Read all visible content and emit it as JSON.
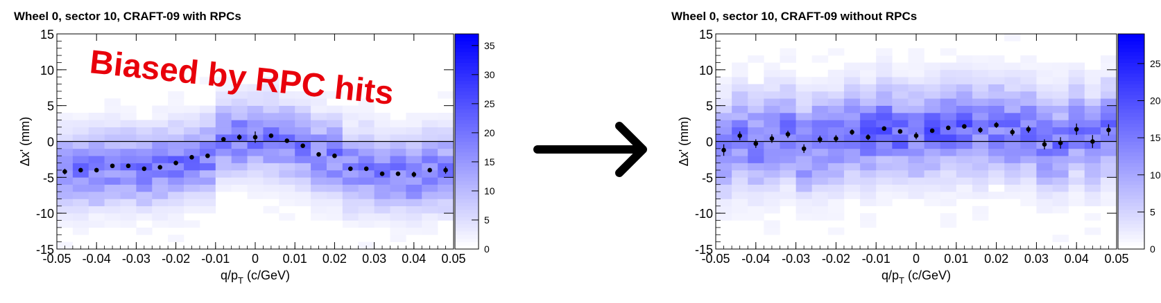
{
  "annotation": {
    "text": "Biased by RPC hits",
    "color": "#e8000b"
  },
  "arrow": {
    "icon": "right-arrow-icon",
    "color": "#000000"
  },
  "colors": {
    "low": "#ffffff",
    "high": "#0000ff",
    "marker": "#000000"
  },
  "chart_data": [
    {
      "type": "heatmap",
      "title": "Wheel 0, sector 10, CRAFT-09 with RPCs",
      "xlabel": "q/p",
      "xlabel_sub": "T",
      "xlabel_unit": " (c/GeV)",
      "ylabel": "Δx' (mm)",
      "xlim": [
        -0.05,
        0.05
      ],
      "ylim": [
        -15,
        15
      ],
      "x_ticks": [
        "-0.05",
        "-0.04",
        "-0.03",
        "-0.02",
        "-0.01",
        "0",
        "0.01",
        "0.02",
        "0.03",
        "0.04",
        "0.05"
      ],
      "y_ticks": [
        "-15",
        "-10",
        "-5",
        "0",
        "5",
        "10",
        "15"
      ],
      "color_scale": {
        "max": 37,
        "ticks": [
          "0",
          "5",
          "10",
          "15",
          "20",
          "25",
          "30",
          "35"
        ]
      },
      "grid": false,
      "profile": {
        "x": [
          -0.048,
          -0.044,
          -0.04,
          -0.036,
          -0.032,
          -0.028,
          -0.024,
          -0.02,
          -0.016,
          -0.012,
          -0.008,
          -0.004,
          0.0,
          0.004,
          0.008,
          0.012,
          0.016,
          0.02,
          0.024,
          0.028,
          0.032,
          0.036,
          0.04,
          0.044,
          0.048
        ],
        "y": [
          -4.2,
          -4.0,
          -4.0,
          -3.4,
          -3.4,
          -3.8,
          -3.6,
          -3.0,
          -2.2,
          -2.0,
          0.3,
          0.6,
          0.6,
          0.8,
          0.1,
          -0.6,
          -1.8,
          -2.0,
          -3.8,
          -3.8,
          -4.5,
          -4.5,
          -4.6,
          -4.0,
          -4.0
        ],
        "err": [
          0.4,
          0.3,
          0.3,
          0.3,
          0.3,
          0.3,
          0.3,
          0.3,
          0.3,
          0.3,
          0.3,
          0.4,
          0.8,
          0.3,
          0.3,
          0.3,
          0.3,
          0.3,
          0.3,
          0.3,
          0.3,
          0.3,
          0.4,
          0.3,
          0.5
        ]
      }
    },
    {
      "type": "heatmap",
      "title": "Wheel 0, sector 10, CRAFT-09 without RPCs",
      "xlabel": "q/p",
      "xlabel_sub": "T",
      "xlabel_unit": " (c/GeV)",
      "ylabel": "Δx' (mm)",
      "xlim": [
        -0.05,
        0.05
      ],
      "ylim": [
        -15,
        15
      ],
      "x_ticks": [
        "-0.05",
        "-0.04",
        "-0.03",
        "-0.02",
        "-0.01",
        "0",
        "0.01",
        "0.02",
        "0.03",
        "0.04",
        "0.05"
      ],
      "y_ticks": [
        "-15",
        "-10",
        "-5",
        "0",
        "5",
        "10",
        "15"
      ],
      "color_scale": {
        "max": 29,
        "ticks": [
          "0",
          "5",
          "10",
          "15",
          "20",
          "25"
        ]
      },
      "grid": false,
      "profile": {
        "x": [
          -0.048,
          -0.044,
          -0.04,
          -0.036,
          -0.032,
          -0.028,
          -0.024,
          -0.02,
          -0.016,
          -0.012,
          -0.008,
          -0.004,
          0.0,
          0.004,
          0.008,
          0.012,
          0.016,
          0.02,
          0.024,
          0.028,
          0.032,
          0.036,
          0.04,
          0.044,
          0.048
        ],
        "y": [
          -1.2,
          0.8,
          -0.3,
          0.4,
          1.0,
          -1.0,
          0.3,
          0.4,
          1.3,
          0.6,
          1.8,
          1.4,
          0.8,
          1.5,
          1.9,
          2.1,
          1.6,
          2.3,
          1.3,
          1.7,
          -0.4,
          -0.2,
          1.7,
          0.0,
          1.6
        ],
        "err": [
          0.8,
          0.6,
          0.6,
          0.6,
          0.5,
          0.6,
          0.5,
          0.5,
          0.4,
          0.4,
          0.3,
          0.3,
          0.5,
          0.3,
          0.3,
          0.3,
          0.4,
          0.4,
          0.5,
          0.5,
          0.7,
          0.8,
          0.8,
          0.9,
          0.8
        ]
      }
    }
  ]
}
